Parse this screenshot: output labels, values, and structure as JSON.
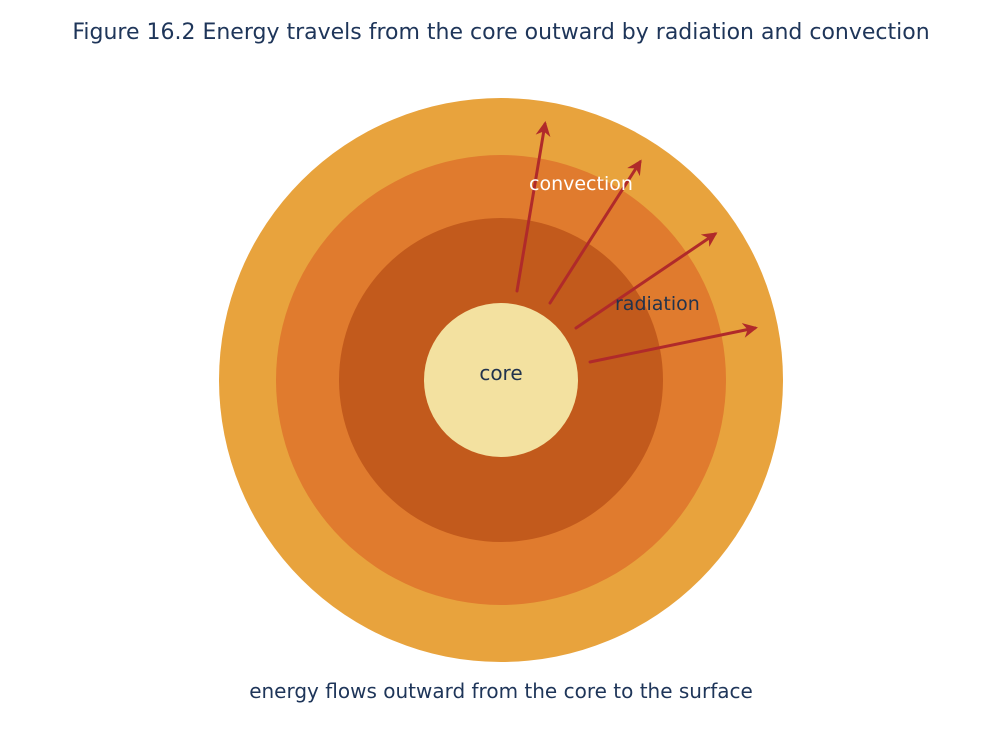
{
  "title": "Figure 16.2  Energy travels from the core outward by radiation and convection",
  "caption": "energy flows outward from the core to the surface",
  "labels": {
    "core": "core",
    "convection": "convection",
    "radiation": "radiation"
  },
  "colors": {
    "text": "#1e3559",
    "outer_layer": "#e8a33d",
    "middle_layer": "#e07b2e",
    "inner_layer": "#c25a1c",
    "core": "#f3e1a0",
    "arrow": "#b02a2a"
  },
  "arrow_count": 4
}
